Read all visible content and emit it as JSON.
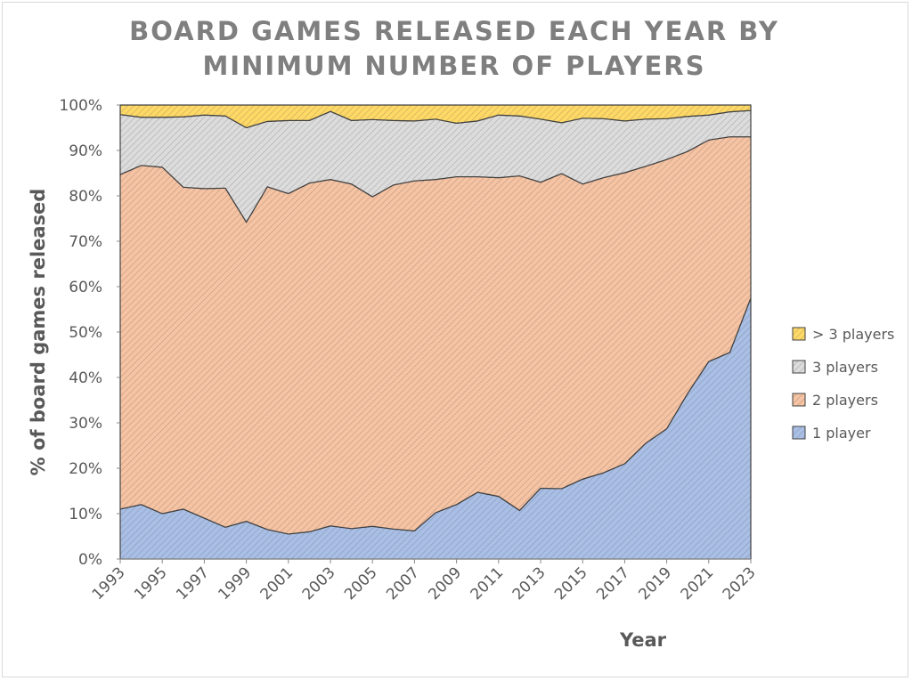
{
  "chart_data": {
    "type": "stacked_area_100",
    "title": "BOARD GAMES RELEASED EACH YEAR BY MINIMUM NUMBER OF PLAYERS",
    "x_label": "Year",
    "y_label": "% of board games released",
    "x": [
      1993,
      1994,
      1995,
      1996,
      1997,
      1998,
      1999,
      2000,
      2001,
      2002,
      2003,
      2004,
      2005,
      2006,
      2007,
      2008,
      2009,
      2010,
      2011,
      2012,
      2013,
      2014,
      2015,
      2016,
      2017,
      2018,
      2019,
      2020,
      2021,
      2022,
      2023
    ],
    "xlim": [
      1993,
      2023
    ],
    "xticks": [
      1993,
      1995,
      1997,
      1999,
      2001,
      2003,
      2005,
      2007,
      2009,
      2011,
      2013,
      2015,
      2017,
      2019,
      2021,
      2023
    ],
    "ylim": [
      0,
      100
    ],
    "yticks": [
      {
        "value": 0,
        "label": "0%"
      },
      {
        "value": 10,
        "label": "10%"
      },
      {
        "value": 20,
        "label": "20%"
      },
      {
        "value": 30,
        "label": "30%"
      },
      {
        "value": 40,
        "label": "40%"
      },
      {
        "value": 50,
        "label": "50%"
      },
      {
        "value": 60,
        "label": "60%"
      },
      {
        "value": 70,
        "label": "70%"
      },
      {
        "value": 80,
        "label": "80%"
      },
      {
        "value": 90,
        "label": "90%"
      },
      {
        "value": 100,
        "label": "100%"
      }
    ],
    "legend": "right",
    "series": [
      {
        "name": "1 player",
        "color": "#a9bfe6",
        "values": [
          11,
          12,
          10,
          11,
          9,
          7,
          8.3,
          6.5,
          5.5,
          6,
          7.3,
          6.7,
          7.2,
          6.6,
          6.2,
          10.2,
          12,
          14.7,
          13.8,
          10.7,
          15.6,
          15.5,
          17.6,
          19,
          21,
          25.5,
          28.7,
          36.5,
          43.5,
          45.5,
          57.5
        ]
      },
      {
        "name": "2 players",
        "color": "#f6c3a3",
        "values": [
          73.7,
          74.7,
          76.3,
          70.9,
          72.6,
          74.7,
          65.9,
          75.5,
          75,
          76.8,
          76.3,
          75.9,
          72.6,
          75.8,
          77.1,
          73.4,
          72.2,
          69.5,
          70.2,
          73.7,
          67.4,
          69.4,
          65,
          65,
          64.1,
          61,
          59.3,
          53.3,
          48.8,
          47.5,
          35.5
        ]
      },
      {
        "name": "3 players",
        "color": "#dcdcdc",
        "values": [
          13.2,
          10.6,
          11,
          15.5,
          16.2,
          15.9,
          20.8,
          14.4,
          16.1,
          13.8,
          15,
          14,
          17,
          14.2,
          13.2,
          13.3,
          11.8,
          12.3,
          13.8,
          13.2,
          13.9,
          11.2,
          14.5,
          13,
          11.4,
          10.4,
          9,
          7.7,
          5.5,
          5.5,
          5.8
        ]
      },
      {
        "name": "> 3 players",
        "color": "#ffd966",
        "values": [
          2.1,
          2.7,
          2.7,
          2.6,
          2.2,
          2.4,
          5,
          3.6,
          3.4,
          3.4,
          1.4,
          3.4,
          3.2,
          3.4,
          3.5,
          3.1,
          4,
          3.5,
          2.2,
          2.4,
          3.1,
          3.9,
          2.9,
          3,
          3.5,
          3.1,
          3,
          2.5,
          2.2,
          1.5,
          1.2
        ]
      }
    ]
  }
}
